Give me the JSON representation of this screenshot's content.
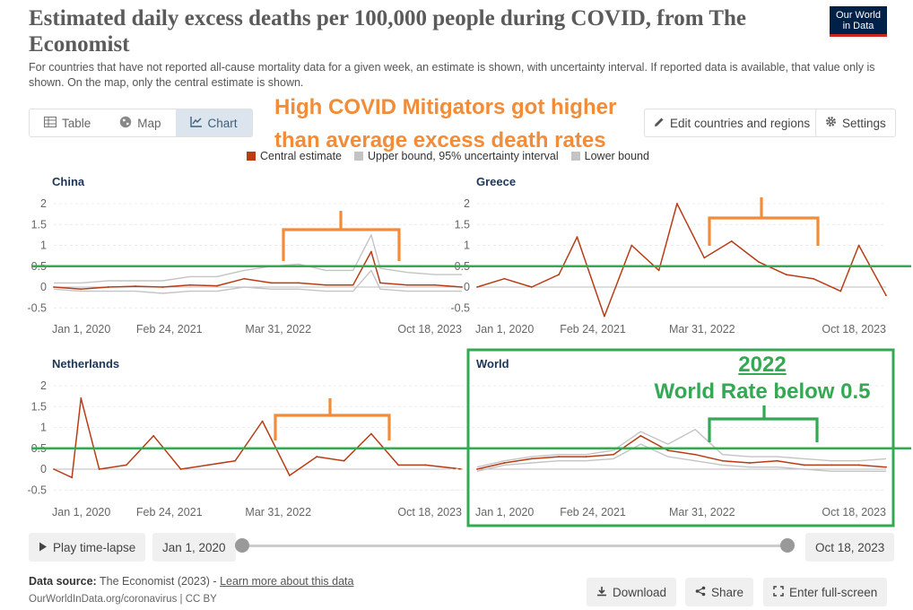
{
  "header": {
    "title": "Estimated daily excess deaths per 100,000 people during COVID, from The Economist",
    "subtitle": "For countries that have not reported all-cause mortality data for a given week, an estimate is shown, with uncertainty interval. If reported data is available, that value only is shown. On the map, only the central estimate is shown.",
    "logo_line1": "Our World",
    "logo_line2": "in Data"
  },
  "tabs": [
    {
      "label": "Table",
      "icon": "table-icon"
    },
    {
      "label": "Map",
      "icon": "globe-icon"
    },
    {
      "label": "Chart",
      "icon": "line-chart-icon",
      "active": true
    }
  ],
  "toolbar": {
    "edit_label": "Edit countries and regions",
    "settings_label": "Settings"
  },
  "annotations": {
    "orange_line1": "High COVID Mitigators got higher",
    "orange_line2": "than average excess death rates",
    "world_year": "2022",
    "world_text": "World Rate below 0.5",
    "green_threshold": 0.5
  },
  "colors": {
    "central": "#b83d15",
    "bounds": "#c4c4c4",
    "orange": "#f28c38",
    "green": "#34a853"
  },
  "legend": {
    "central": "Central estimate",
    "upper": "Upper bound, 95% uncertainty interval",
    "lower": "Lower bound"
  },
  "chart_data": [
    {
      "type": "line",
      "title": "China",
      "x_ticks": [
        "Jan 1, 2020",
        "Feb 24, 2021",
        "Mar 31, 2022",
        "Oct 18, 2023"
      ],
      "y_ticks": [
        "2",
        "1.5",
        "1",
        "0.5",
        "0",
        "-0.5"
      ],
      "ylim": [
        -0.5,
        2
      ],
      "x": [
        "2020-01",
        "2020-04",
        "2020-07",
        "2020-10",
        "2021-01",
        "2021-04",
        "2021-07",
        "2021-10",
        "2022-01",
        "2022-04",
        "2022-07",
        "2022-10",
        "2022-12",
        "2023-01",
        "2023-04",
        "2023-07",
        "2023-10"
      ],
      "series": [
        {
          "name": "Central estimate",
          "values": [
            0.0,
            -0.05,
            0.0,
            0.02,
            0.0,
            0.05,
            0.03,
            0.2,
            0.1,
            0.1,
            0.05,
            0.05,
            0.85,
            0.1,
            0.05,
            0.05,
            0.0
          ]
        },
        {
          "name": "Upper bound, 95% uncertainty interval",
          "values": [
            0.1,
            0.1,
            0.15,
            0.15,
            0.15,
            0.25,
            0.25,
            0.4,
            0.5,
            0.55,
            0.4,
            0.4,
            1.25,
            0.45,
            0.35,
            0.3,
            0.3
          ]
        },
        {
          "name": "Lower bound",
          "values": [
            -0.05,
            -0.1,
            -0.1,
            -0.1,
            -0.15,
            -0.1,
            -0.1,
            0.0,
            -0.05,
            -0.05,
            -0.1,
            -0.1,
            0.4,
            -0.05,
            -0.1,
            -0.1,
            -0.1
          ]
        }
      ]
    },
    {
      "type": "line",
      "title": "Greece",
      "x_ticks": [
        "Jan 1, 2020",
        "Feb 24, 2021",
        "Mar 31, 2022",
        "Oct 18, 2023"
      ],
      "y_ticks": [
        "2",
        "1.5",
        "1",
        "0.5",
        "0",
        "-0.5"
      ],
      "ylim": [
        -0.5,
        2
      ],
      "x": [
        "2020-01",
        "2020-04",
        "2020-07",
        "2020-10",
        "2020-12",
        "2021-03",
        "2021-06",
        "2021-09",
        "2021-11",
        "2022-02",
        "2022-05",
        "2022-08",
        "2022-11",
        "2023-02",
        "2023-05",
        "2023-07",
        "2023-10"
      ],
      "series": [
        {
          "name": "Central estimate",
          "values": [
            0.0,
            0.2,
            0.0,
            0.3,
            1.2,
            -0.7,
            1.0,
            0.4,
            2.0,
            0.7,
            1.1,
            0.6,
            0.3,
            0.2,
            -0.1,
            1.0,
            -0.2
          ]
        }
      ]
    },
    {
      "type": "line",
      "title": "Netherlands",
      "x_ticks": [
        "Jan 1, 2020",
        "Feb 24, 2021",
        "Mar 31, 2022",
        "Oct 18, 2023"
      ],
      "y_ticks": [
        "2",
        "1.5",
        "1",
        "0.5",
        "0",
        "-0.5"
      ],
      "ylim": [
        -0.5,
        2
      ],
      "x": [
        "2020-01",
        "2020-03",
        "2020-04",
        "2020-06",
        "2020-09",
        "2020-12",
        "2021-03",
        "2021-06",
        "2021-09",
        "2021-12",
        "2022-03",
        "2022-06",
        "2022-09",
        "2022-12",
        "2023-03",
        "2023-06",
        "2023-10"
      ],
      "series": [
        {
          "name": "Central estimate",
          "values": [
            0.0,
            -0.2,
            1.7,
            0.0,
            0.1,
            0.8,
            0.0,
            0.1,
            0.2,
            1.15,
            -0.15,
            0.3,
            0.2,
            0.85,
            0.1,
            0.1,
            0.0
          ]
        }
      ]
    },
    {
      "type": "line",
      "title": "World",
      "x_ticks": [
        "Jan 1, 2020",
        "Feb 24, 2021",
        "Mar 31, 2022",
        "Oct 18, 2023"
      ],
      "x": [
        "2020-01",
        "2020-04",
        "2020-07",
        "2020-10",
        "2021-01",
        "2021-04",
        "2021-07",
        "2021-10",
        "2022-01",
        "2022-04",
        "2022-07",
        "2022-10",
        "2023-01",
        "2023-04",
        "2023-07",
        "2023-10"
      ],
      "series": [
        {
          "name": "Central estimate",
          "values": [
            0.0,
            0.15,
            0.25,
            0.3,
            0.3,
            0.35,
            0.8,
            0.45,
            0.35,
            0.2,
            0.15,
            0.2,
            0.1,
            0.1,
            0.1,
            0.05
          ]
        },
        {
          "name": "Upper bound, 95% uncertainty interval",
          "values": [
            0.05,
            0.2,
            0.3,
            0.35,
            0.35,
            0.45,
            0.9,
            0.6,
            0.95,
            0.35,
            0.3,
            0.3,
            0.25,
            0.2,
            0.2,
            0.25
          ]
        },
        {
          "name": "Lower bound",
          "values": [
            -0.05,
            0.1,
            0.15,
            0.2,
            0.2,
            0.25,
            0.6,
            0.3,
            0.2,
            0.1,
            0.05,
            0.05,
            0.0,
            -0.05,
            -0.05,
            -0.05
          ]
        }
      ]
    }
  ],
  "timeline": {
    "play_label": "Play time-lapse",
    "start_date": "Jan 1, 2020",
    "end_date": "Oct 18, 2023"
  },
  "footer": {
    "source_label": "Data source:",
    "source_text": "The Economist (2023) -",
    "learn_more": "Learn more about this data",
    "url": "OurWorldInData.org/coronavirus | CC BY",
    "download_label": "Download",
    "share_label": "Share",
    "fullscreen_label": "Enter full-screen"
  }
}
